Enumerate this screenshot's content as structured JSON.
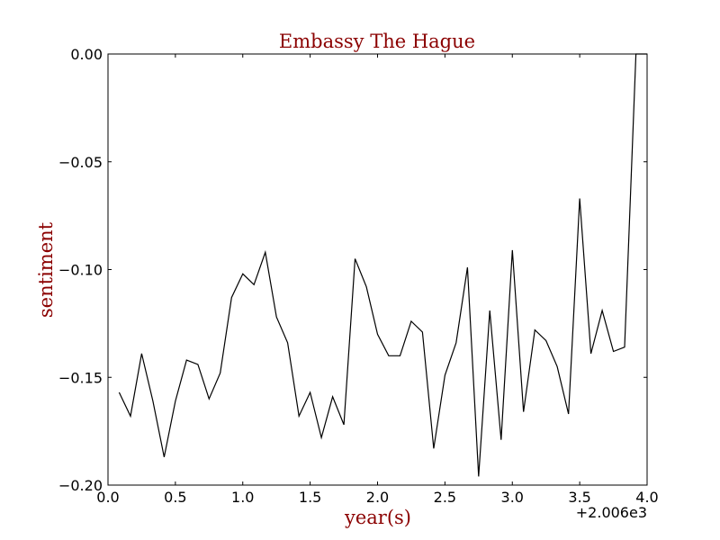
{
  "chart_data": {
    "type": "line",
    "title": "Embassy The Hague",
    "xlabel": "year(s)",
    "ylabel": "sentiment",
    "x_offset_label": "+2.006e3",
    "xlim": [
      0.0,
      4.0
    ],
    "ylim": [
      -0.2,
      0.0
    ],
    "x_ticks": [
      0.0,
      0.5,
      1.0,
      1.5,
      2.0,
      2.5,
      3.0,
      3.5,
      4.0
    ],
    "x_tick_labels": [
      "0.0",
      "0.5",
      "1.0",
      "1.5",
      "2.0",
      "2.5",
      "3.0",
      "3.5",
      "4.0"
    ],
    "y_ticks": [
      0.0,
      -0.05,
      -0.1,
      -0.15,
      -0.2
    ],
    "y_tick_labels": [
      "0.00",
      "−0.05",
      "−0.10",
      "−0.15",
      "−0.20"
    ],
    "grid": false,
    "colors": {
      "line": "#000000",
      "title": "#8b0000",
      "labels": "#8b0000",
      "axes": "#000000"
    },
    "series": [
      {
        "x": [
          0.083,
          0.167,
          0.25,
          0.333,
          0.417,
          0.5,
          0.583,
          0.667,
          0.75,
          0.833,
          0.917,
          1.0,
          1.083,
          1.167,
          1.25,
          1.333,
          1.417,
          1.5,
          1.583,
          1.667,
          1.75,
          1.833,
          1.917,
          2.0,
          2.083,
          2.167,
          2.25,
          2.333,
          2.417,
          2.5,
          2.583,
          2.667,
          2.75,
          2.833,
          2.917,
          3.0,
          3.083,
          3.167,
          3.25,
          3.333,
          3.417,
          3.5,
          3.583,
          3.667,
          3.75,
          3.833,
          3.917,
          4.0
        ],
        "y": [
          -0.157,
          -0.168,
          -0.139,
          -0.161,
          -0.187,
          -0.161,
          -0.142,
          -0.144,
          -0.16,
          -0.148,
          -0.113,
          -0.102,
          -0.107,
          -0.092,
          -0.122,
          -0.134,
          -0.168,
          -0.157,
          -0.178,
          -0.159,
          -0.172,
          -0.095,
          -0.108,
          -0.13,
          -0.14,
          -0.14,
          -0.124,
          -0.129,
          -0.183,
          -0.149,
          -0.134,
          -0.099,
          -0.196,
          -0.119,
          -0.179,
          -0.091,
          -0.166,
          -0.128,
          -0.133,
          -0.145,
          -0.167,
          -0.067,
          -0.139,
          -0.119,
          -0.138,
          -0.136,
          0.0,
          0.0
        ]
      }
    ]
  }
}
